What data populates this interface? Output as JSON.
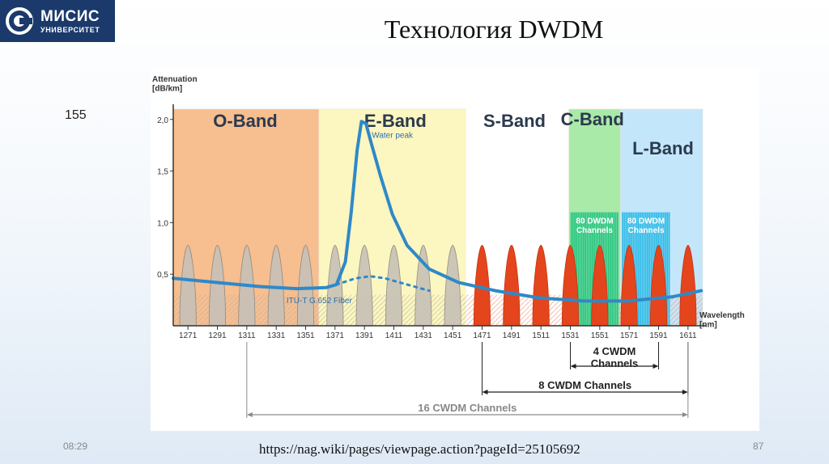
{
  "logo": {
    "line1": "МИСИС",
    "line2": "УНИВЕРСИТЕТ"
  },
  "title": "Технология DWDM",
  "slide_number": "155",
  "footer": {
    "time": "08:29",
    "url": "https://nag.wiki/pages/viewpage.action?pageId=25105692",
    "page": "87"
  },
  "chart_data": {
    "type": "line",
    "ylabel": "Attenuation\n[dB/km]",
    "xlabel": "Wavelength\n[nm]",
    "yticks": [
      "0,5",
      "1,0",
      "1,5",
      "2,0"
    ],
    "ytick_values": [
      0.5,
      1.0,
      1.5,
      2.0
    ],
    "ylim": [
      0,
      2.1
    ],
    "xlim": [
      1261,
      1621
    ],
    "x_ticks": [
      1271,
      1291,
      1311,
      1331,
      1351,
      1371,
      1391,
      1411,
      1431,
      1451,
      1471,
      1491,
      1511,
      1531,
      1551,
      1571,
      1591,
      1611
    ],
    "bands": [
      {
        "label": "O-Band",
        "start": 1261,
        "end": 1360,
        "color": "#f7be8f"
      },
      {
        "label": "E-Band",
        "start": 1360,
        "end": 1460,
        "color": "#fcf6c0"
      },
      {
        "label": "S-Band",
        "start": 1460,
        "end": 1530,
        "color": "#ffffff"
      },
      {
        "label": "C-Band",
        "start": 1530,
        "end": 1565,
        "color": "#a9eaa9"
      },
      {
        "label": "L-Band",
        "start": 1565,
        "end": 1625,
        "color": "#c4e6fa"
      }
    ],
    "dwdm_blocks": [
      {
        "label": "80 DWDM\nChannels",
        "start": 1530,
        "end": 1565,
        "color": "#1fc27a"
      },
      {
        "label": "80 DWDM\nChannels",
        "start": 1565,
        "end": 1600,
        "color": "#27b9e6"
      }
    ],
    "cwdm_channels": {
      "wavelengths": [
        1271,
        1291,
        1311,
        1331,
        1351,
        1371,
        1391,
        1411,
        1431,
        1451,
        1471,
        1491,
        1511,
        1531,
        1551,
        1571,
        1591,
        1611
      ],
      "peak": 0.78,
      "active_from": 1471
    },
    "series": [
      {
        "name": "ITU-T G.652 Fiber",
        "style": "solid",
        "points": [
          [
            1261,
            0.46
          ],
          [
            1290,
            0.42
          ],
          [
            1320,
            0.38
          ],
          [
            1345,
            0.36
          ],
          [
            1365,
            0.37
          ],
          [
            1372,
            0.4
          ],
          [
            1378,
            0.62
          ],
          [
            1382,
            1.1
          ],
          [
            1386,
            1.7
          ],
          [
            1389,
            1.98
          ],
          [
            1392,
            1.96
          ],
          [
            1396,
            1.75
          ],
          [
            1402,
            1.45
          ],
          [
            1410,
            1.08
          ],
          [
            1420,
            0.78
          ],
          [
            1435,
            0.55
          ],
          [
            1455,
            0.42
          ],
          [
            1480,
            0.34
          ],
          [
            1510,
            0.27
          ],
          [
            1540,
            0.24
          ],
          [
            1570,
            0.24
          ],
          [
            1600,
            0.28
          ],
          [
            1620,
            0.34
          ]
        ]
      },
      {
        "name": "low water peak",
        "style": "dotted",
        "points": [
          [
            1372,
            0.4
          ],
          [
            1385,
            0.46
          ],
          [
            1395,
            0.48
          ],
          [
            1405,
            0.46
          ],
          [
            1420,
            0.4
          ],
          [
            1435,
            0.34
          ]
        ]
      }
    ],
    "annotations": [
      {
        "text": "Water peak",
        "x": 1396,
        "y": 1.82
      },
      {
        "text": "ITU-T G.652 Fiber",
        "x": 1338,
        "y": 0.22
      }
    ],
    "spans": [
      {
        "label": "4 CWDM\nChannels",
        "from": 1531,
        "to": 1591
      },
      {
        "label": "8 CWDM Channels",
        "from": 1471,
        "to": 1611
      },
      {
        "label": "16 CWDM Channels",
        "from": 1311,
        "to": 1611
      }
    ]
  }
}
